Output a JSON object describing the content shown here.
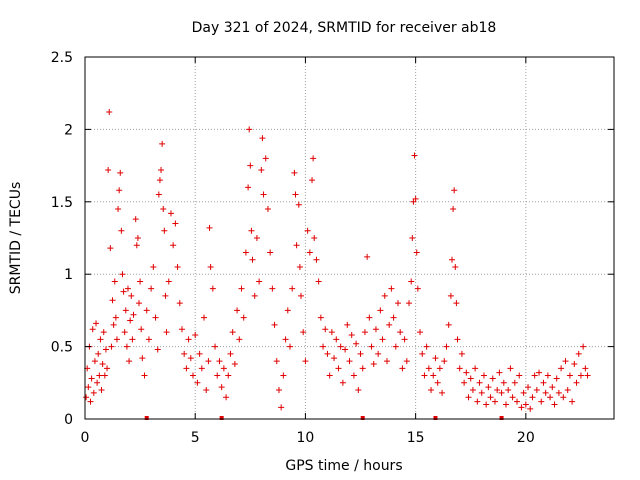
{
  "chart_data": {
    "type": "scatter",
    "title": "Day 321 of 2024, SRMTID for receiver ab18",
    "xlabel": "GPS time / hours",
    "ylabel": "SRMTID / TECUs",
    "xlim": [
      0,
      24.0
    ],
    "ylim": [
      0,
      2.5
    ],
    "x_ticks": [
      0,
      5,
      10,
      15,
      20
    ],
    "x_tick_labels": [
      "0",
      "5",
      "10",
      "15",
      "20"
    ],
    "y_ticks": [
      0,
      0.5,
      1,
      1.5,
      2,
      2.5
    ],
    "y_tick_labels": [
      "0",
      "0.5",
      "1",
      "1.5",
      "2",
      "2.5"
    ],
    "grid": true,
    "marker": "+",
    "color": "#e00000",
    "series": [
      {
        "name": "SRMTID",
        "points": [
          [
            0.05,
            0.15
          ],
          [
            0.1,
            0.35
          ],
          [
            0.15,
            0.22
          ],
          [
            0.2,
            0.5
          ],
          [
            0.25,
            0.12
          ],
          [
            0.3,
            0.28
          ],
          [
            0.35,
            0.62
          ],
          [
            0.4,
            0.18
          ],
          [
            0.45,
            0.4
          ],
          [
            0.5,
            0.66
          ],
          [
            0.55,
            0.25
          ],
          [
            0.6,
            0.45
          ],
          [
            0.65,
            0.3
          ],
          [
            0.7,
            0.55
          ],
          [
            0.75,
            0.2
          ],
          [
            0.8,
            0.38
          ],
          [
            0.85,
            0.6
          ],
          [
            0.9,
            0.3
          ],
          [
            0.95,
            0.48
          ],
          [
            1.0,
            0.35
          ],
          [
            1.05,
            1.72
          ],
          [
            1.1,
            2.12
          ],
          [
            1.15,
            1.18
          ],
          [
            1.2,
            0.5
          ],
          [
            1.25,
            0.82
          ],
          [
            1.3,
            0.65
          ],
          [
            1.35,
            0.95
          ],
          [
            1.4,
            0.7
          ],
          [
            1.45,
            0.55
          ],
          [
            1.5,
            1.45
          ],
          [
            1.55,
            1.58
          ],
          [
            1.6,
            1.7
          ],
          [
            1.65,
            1.3
          ],
          [
            1.7,
            1.0
          ],
          [
            1.75,
            0.88
          ],
          [
            1.8,
            0.6
          ],
          [
            1.85,
            0.75
          ],
          [
            1.9,
            0.5
          ],
          [
            1.95,
            0.9
          ],
          [
            2.0,
            0.4
          ],
          [
            2.05,
            0.68
          ],
          [
            2.1,
            0.85
          ],
          [
            2.15,
            0.55
          ],
          [
            2.2,
            0.72
          ],
          [
            2.3,
            1.38
          ],
          [
            2.35,
            1.2
          ],
          [
            2.4,
            1.25
          ],
          [
            2.45,
            0.8
          ],
          [
            2.5,
            0.95
          ],
          [
            2.55,
            0.62
          ],
          [
            2.6,
            0.42
          ],
          [
            2.7,
            0.3
          ],
          [
            2.8,
            0.75
          ],
          [
            2.9,
            0.55
          ],
          [
            3.0,
            0.9
          ],
          [
            3.1,
            1.05
          ],
          [
            3.2,
            0.7
          ],
          [
            3.3,
            0.48
          ],
          [
            3.35,
            1.55
          ],
          [
            3.4,
            1.65
          ],
          [
            3.45,
            1.72
          ],
          [
            3.5,
            1.9
          ],
          [
            3.55,
            1.45
          ],
          [
            3.6,
            1.3
          ],
          [
            3.65,
            0.85
          ],
          [
            3.7,
            0.6
          ],
          [
            3.8,
            0.95
          ],
          [
            3.9,
            1.42
          ],
          [
            4.0,
            1.2
          ],
          [
            4.1,
            1.35
          ],
          [
            4.2,
            1.05
          ],
          [
            4.3,
            0.8
          ],
          [
            4.4,
            0.62
          ],
          [
            4.5,
            0.45
          ],
          [
            4.6,
            0.35
          ],
          [
            4.7,
            0.55
          ],
          [
            4.8,
            0.42
          ],
          [
            4.9,
            0.3
          ],
          [
            5.0,
            0.58
          ],
          [
            5.1,
            0.25
          ],
          [
            5.2,
            0.45
          ],
          [
            5.3,
            0.35
          ],
          [
            5.4,
            0.7
          ],
          [
            5.5,
            0.2
          ],
          [
            5.6,
            0.4
          ],
          [
            5.65,
            1.32
          ],
          [
            5.7,
            1.05
          ],
          [
            5.8,
            0.9
          ],
          [
            5.9,
            0.5
          ],
          [
            6.0,
            0.3
          ],
          [
            6.1,
            0.4
          ],
          [
            6.2,
            0.22
          ],
          [
            6.3,
            0.35
          ],
          [
            6.4,
            0.15
          ],
          [
            6.5,
            0.3
          ],
          [
            6.6,
            0.45
          ],
          [
            6.7,
            0.6
          ],
          [
            6.8,
            0.38
          ],
          [
            6.9,
            0.75
          ],
          [
            7.0,
            0.55
          ],
          [
            7.1,
            0.9
          ],
          [
            7.2,
            0.7
          ],
          [
            7.3,
            1.15
          ],
          [
            7.4,
            1.6
          ],
          [
            7.45,
            2.0
          ],
          [
            7.5,
            1.75
          ],
          [
            7.55,
            1.3
          ],
          [
            7.6,
            1.1
          ],
          [
            7.7,
            0.85
          ],
          [
            7.8,
            1.25
          ],
          [
            7.9,
            0.95
          ],
          [
            8.0,
            1.72
          ],
          [
            8.05,
            1.94
          ],
          [
            8.1,
            1.55
          ],
          [
            8.2,
            1.8
          ],
          [
            8.3,
            1.45
          ],
          [
            8.4,
            1.15
          ],
          [
            8.5,
            0.9
          ],
          [
            8.6,
            0.65
          ],
          [
            8.7,
            0.4
          ],
          [
            8.8,
            0.2
          ],
          [
            8.9,
            0.08
          ],
          [
            9.0,
            0.3
          ],
          [
            9.1,
            0.55
          ],
          [
            9.2,
            0.75
          ],
          [
            9.3,
            0.5
          ],
          [
            9.4,
            0.9
          ],
          [
            9.5,
            1.7
          ],
          [
            9.55,
            1.55
          ],
          [
            9.6,
            1.2
          ],
          [
            9.7,
            1.48
          ],
          [
            9.75,
            1.05
          ],
          [
            9.8,
            0.85
          ],
          [
            9.9,
            0.6
          ],
          [
            10.0,
            0.4
          ],
          [
            10.1,
            1.3
          ],
          [
            10.2,
            1.15
          ],
          [
            10.3,
            1.65
          ],
          [
            10.35,
            1.8
          ],
          [
            10.4,
            1.25
          ],
          [
            10.5,
            1.1
          ],
          [
            10.6,
            0.95
          ],
          [
            10.7,
            0.7
          ],
          [
            10.8,
            0.5
          ],
          [
            10.9,
            0.62
          ],
          [
            11.0,
            0.45
          ],
          [
            11.1,
            0.3
          ],
          [
            11.2,
            0.6
          ],
          [
            11.3,
            0.42
          ],
          [
            11.4,
            0.55
          ],
          [
            11.5,
            0.35
          ],
          [
            11.6,
            0.5
          ],
          [
            11.7,
            0.25
          ],
          [
            11.8,
            0.48
          ],
          [
            11.9,
            0.65
          ],
          [
            12.0,
            0.4
          ],
          [
            12.1,
            0.58
          ],
          [
            12.2,
            0.3
          ],
          [
            12.3,
            0.52
          ],
          [
            12.4,
            0.2
          ],
          [
            12.5,
            0.45
          ],
          [
            12.6,
            0.35
          ],
          [
            12.7,
            0.6
          ],
          [
            12.8,
            1.12
          ],
          [
            12.9,
            0.7
          ],
          [
            13.0,
            0.5
          ],
          [
            13.1,
            0.38
          ],
          [
            13.2,
            0.62
          ],
          [
            13.3,
            0.45
          ],
          [
            13.4,
            0.75
          ],
          [
            13.5,
            0.55
          ],
          [
            13.6,
            0.85
          ],
          [
            13.7,
            0.4
          ],
          [
            13.8,
            0.65
          ],
          [
            13.9,
            0.9
          ],
          [
            14.0,
            0.7
          ],
          [
            14.1,
            0.5
          ],
          [
            14.2,
            0.8
          ],
          [
            14.3,
            0.6
          ],
          [
            14.4,
            0.35
          ],
          [
            14.5,
            0.55
          ],
          [
            14.6,
            0.4
          ],
          [
            14.7,
            0.8
          ],
          [
            14.8,
            0.95
          ],
          [
            14.85,
            1.25
          ],
          [
            14.9,
            1.5
          ],
          [
            14.95,
            1.82
          ],
          [
            15.0,
            1.52
          ],
          [
            15.05,
            1.15
          ],
          [
            15.1,
            0.9
          ],
          [
            15.2,
            0.6
          ],
          [
            15.3,
            0.45
          ],
          [
            15.4,
            0.3
          ],
          [
            15.5,
            0.5
          ],
          [
            15.6,
            0.35
          ],
          [
            15.7,
            0.2
          ],
          [
            15.8,
            0.3
          ],
          [
            15.9,
            0.42
          ],
          [
            16.0,
            0.25
          ],
          [
            16.1,
            0.35
          ],
          [
            16.2,
            0.18
          ],
          [
            16.3,
            0.4
          ],
          [
            16.4,
            0.5
          ],
          [
            16.5,
            0.65
          ],
          [
            16.6,
            0.85
          ],
          [
            16.65,
            1.1
          ],
          [
            16.7,
            1.45
          ],
          [
            16.75,
            1.58
          ],
          [
            16.8,
            1.05
          ],
          [
            16.85,
            0.8
          ],
          [
            16.9,
            0.55
          ],
          [
            17.0,
            0.35
          ],
          [
            17.1,
            0.45
          ],
          [
            17.2,
            0.25
          ],
          [
            17.3,
            0.32
          ],
          [
            17.4,
            0.15
          ],
          [
            17.5,
            0.28
          ],
          [
            17.6,
            0.2
          ],
          [
            17.7,
            0.35
          ],
          [
            17.8,
            0.12
          ],
          [
            17.9,
            0.25
          ],
          [
            18.0,
            0.18
          ],
          [
            18.1,
            0.3
          ],
          [
            18.2,
            0.1
          ],
          [
            18.3,
            0.22
          ],
          [
            18.4,
            0.15
          ],
          [
            18.5,
            0.28
          ],
          [
            18.6,
            0.12
          ],
          [
            18.7,
            0.2
          ],
          [
            18.8,
            0.32
          ],
          [
            18.9,
            0.18
          ],
          [
            19.0,
            0.25
          ],
          [
            19.1,
            0.1
          ],
          [
            19.2,
            0.2
          ],
          [
            19.3,
            0.35
          ],
          [
            19.4,
            0.15
          ],
          [
            19.5,
            0.25
          ],
          [
            19.6,
            0.12
          ],
          [
            19.7,
            0.3
          ],
          [
            19.8,
            0.08
          ],
          [
            19.9,
            0.18
          ],
          [
            20.0,
            0.1
          ],
          [
            20.1,
            0.22
          ],
          [
            20.2,
            0.07
          ],
          [
            20.3,
            0.15
          ],
          [
            20.4,
            0.3
          ],
          [
            20.5,
            0.2
          ],
          [
            20.6,
            0.32
          ],
          [
            20.7,
            0.12
          ],
          [
            20.8,
            0.25
          ],
          [
            20.9,
            0.18
          ],
          [
            21.0,
            0.3
          ],
          [
            21.1,
            0.15
          ],
          [
            21.2,
            0.22
          ],
          [
            21.3,
            0.1
          ],
          [
            21.4,
            0.28
          ],
          [
            21.5,
            0.18
          ],
          [
            21.6,
            0.35
          ],
          [
            21.7,
            0.15
          ],
          [
            21.8,
            0.4
          ],
          [
            21.9,
            0.2
          ],
          [
            22.0,
            0.3
          ],
          [
            22.1,
            0.12
          ],
          [
            22.2,
            0.38
          ],
          [
            22.3,
            0.25
          ],
          [
            22.4,
            0.45
          ],
          [
            22.5,
            0.3
          ],
          [
            22.6,
            0.5
          ],
          [
            22.7,
            0.35
          ],
          [
            22.8,
            0.3
          ]
        ]
      }
    ],
    "bottom_markers_x": [
      2.8,
      6.2,
      12.6,
      15.9,
      18.9
    ]
  }
}
